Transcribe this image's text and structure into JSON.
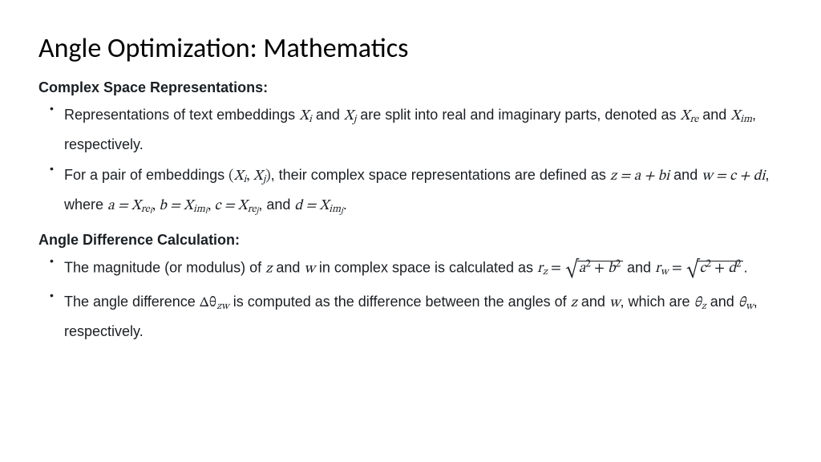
{
  "title": "Angle Optimization: Mathematics",
  "sections": {
    "s1": {
      "heading": "Complex Space Representations:",
      "b1": {
        "t1": "Representations of text embeddings ",
        "t2": " and ",
        "t3": " are split into real and imaginary parts, denoted as ",
        "t4": " and ",
        "t5": ", respectively."
      },
      "b2": {
        "t1": "For a pair of embeddings ",
        "t2": ", their complex space representations are defined as ",
        "t3": " and ",
        "t4": ", where ",
        "t5": ", and "
      }
    },
    "s2": {
      "heading": "Angle Difference Calculation:",
      "b1": {
        "t1": "The magnitude (or modulus) of ",
        "t2": " and ",
        "t3": " in complex space is calculated as ",
        "t4": " and "
      },
      "b2": {
        "t1": "The angle difference ",
        "t2": " is computed as the difference between the angles of ",
        "t3": " and ",
        "t4": ", which are ",
        "t5": " and ",
        "t6": ", respectively."
      }
    }
  },
  "math": {
    "Xi": "X",
    "Xi_sub": "i",
    "Xj": "X",
    "Xj_sub": "j",
    "Xre": "X",
    "Xre_sub": "re",
    "Xim": "X",
    "Xim_sub": "im",
    "pair_open": "(",
    "pair_close": ")",
    "comma": ", ",
    "z_eq": "z = a + bi",
    "w_eq": "w = c + di",
    "a_eq": "a = X",
    "a_sub": "re",
    "a_subsub": "i",
    "b_eq": "b = X",
    "b_sub": "im",
    "b_subsub": "i",
    "c_eq": "c = X",
    "c_sub": "re",
    "c_subsub": "j",
    "d_eq": "d = X",
    "d_sub": "im",
    "d_subsub": "j",
    "period": ".",
    "z": "z",
    "w": "w",
    "rz": "r",
    "rz_sub": "z",
    "eq": " = ",
    "rw": "r",
    "rw_sub": "w",
    "a2b2_a": "a",
    "a2b2_b": "b",
    "c2d2_c": "c",
    "c2d2_d": "d",
    "two": "2",
    "plus": " + ",
    "dtheta": "Δθ",
    "dtheta_sub": "zw",
    "thz": "θ",
    "thz_sub": "z",
    "thw": "θ",
    "thw_sub": "w"
  },
  "style": {
    "title_fontsize": 34,
    "body_fontsize": 18,
    "heading_fontsize": 18,
    "line_height": 1.9,
    "text_color": "#1b1f23",
    "title_color": "#000000",
    "background": "#ffffff",
    "math_font": "Cambria Math, STIX Two Math, Latin Modern Math, Georgia, serif",
    "body_font": "-apple-system, Segoe UI, Helvetica, Arial, sans-serif"
  }
}
